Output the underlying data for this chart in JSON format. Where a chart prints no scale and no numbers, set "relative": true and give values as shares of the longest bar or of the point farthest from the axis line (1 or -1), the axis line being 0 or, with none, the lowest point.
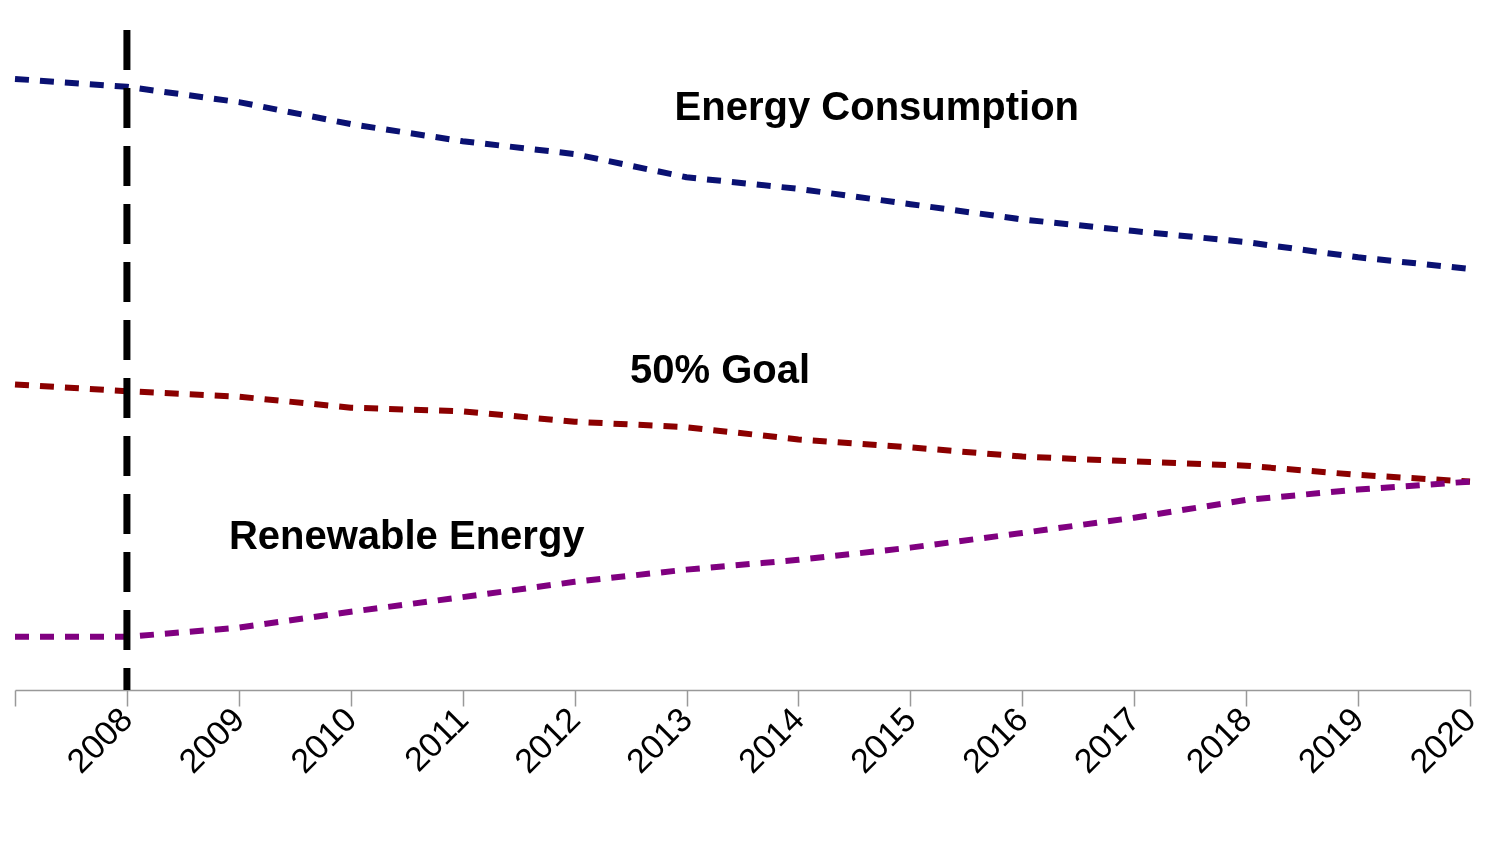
{
  "chart_data": {
    "type": "line",
    "relative": true,
    "grid": false,
    "marker": "none",
    "line_style": "dashed",
    "categories": [
      null,
      "2008",
      "2009",
      "2010",
      "2011",
      "2012",
      "2013",
      "2014",
      "2015",
      "2016",
      "2017",
      "2018",
      "2019",
      "2020"
    ],
    "series": [
      {
        "name": "Energy Consumption",
        "color": "#0a1172",
        "values": [
          1,
          0.987,
          0.962,
          0.926,
          0.898,
          0.877,
          0.839,
          0.82,
          0.795,
          0.77,
          0.751,
          0.733,
          0.708,
          0.689
        ]
      },
      {
        "name": "50% Goal",
        "color": "#8b0000",
        "values": [
          0.5,
          0.489,
          0.48,
          0.462,
          0.456,
          0.439,
          0.43,
          0.41,
          0.397,
          0.382,
          0.374,
          0.367,
          0.352,
          0.341
        ]
      },
      {
        "name": "Renewable Energy",
        "color": "#800080",
        "values": [
          0.087,
          0.087,
          0.102,
          0.128,
          0.152,
          0.177,
          0.197,
          0.213,
          0.233,
          0.257,
          0.282,
          0.311,
          0.328,
          0.341
        ]
      }
    ],
    "ref_lines": [
      {
        "axis": "x",
        "value": "2008",
        "color": "#000000",
        "line_style": "dashed"
      }
    ]
  }
}
